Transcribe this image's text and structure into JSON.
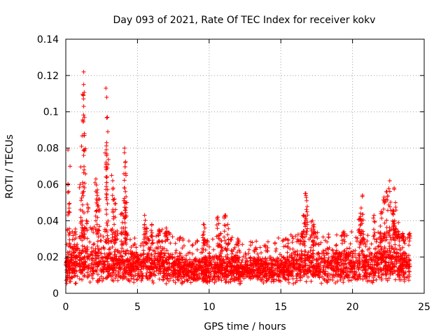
{
  "chart_data": {
    "type": "scatter",
    "title": "Day 093 of 2021, Rate Of TEC Index for receiver kokv",
    "xlabel": "GPS time / hours",
    "ylabel": "ROTI / TECUs",
    "xlim": [
      0,
      25
    ],
    "ylim": [
      0,
      0.14
    ],
    "xticks": [
      "0",
      "5",
      "10",
      "15",
      "20",
      "25"
    ],
    "yticks": [
      "0",
      "0.02",
      "0.04",
      "0.06",
      "0.08",
      "0.1",
      "0.12",
      "0.14"
    ],
    "grid": true,
    "marker": "+",
    "series": [
      {
        "name": "ROTI",
        "color": "#ff0000",
        "coverage": {
          "x_start": 0.0,
          "x_end": 24.0,
          "baseline_min": 0.005,
          "baseline_max": 0.028
        },
        "envelope": [
          [
            0.0,
            0.024
          ],
          [
            0.5,
            0.028
          ],
          [
            1.0,
            0.03
          ],
          [
            1.5,
            0.03
          ],
          [
            2.0,
            0.029
          ],
          [
            2.5,
            0.028
          ],
          [
            3.0,
            0.027
          ],
          [
            3.5,
            0.027
          ],
          [
            4.0,
            0.026
          ],
          [
            4.5,
            0.025
          ],
          [
            5.0,
            0.025
          ],
          [
            5.5,
            0.026
          ],
          [
            6.0,
            0.027
          ],
          [
            6.5,
            0.028
          ],
          [
            7.0,
            0.027
          ],
          [
            7.5,
            0.025
          ],
          [
            8.0,
            0.023
          ],
          [
            8.5,
            0.021
          ],
          [
            9.0,
            0.021
          ],
          [
            9.5,
            0.022
          ],
          [
            10.0,
            0.023
          ],
          [
            10.5,
            0.024
          ],
          [
            11.0,
            0.024
          ],
          [
            11.5,
            0.023
          ],
          [
            12.0,
            0.022
          ],
          [
            12.5,
            0.021
          ],
          [
            13.0,
            0.021
          ],
          [
            13.5,
            0.021
          ],
          [
            14.0,
            0.022
          ],
          [
            14.5,
            0.022
          ],
          [
            15.0,
            0.023
          ],
          [
            15.5,
            0.024
          ],
          [
            16.0,
            0.025
          ],
          [
            16.5,
            0.026
          ],
          [
            17.0,
            0.026
          ],
          [
            17.5,
            0.026
          ],
          [
            18.0,
            0.026
          ],
          [
            18.5,
            0.026
          ],
          [
            19.0,
            0.026
          ],
          [
            19.5,
            0.026
          ],
          [
            20.0,
            0.026
          ],
          [
            20.5,
            0.027
          ],
          [
            21.0,
            0.027
          ],
          [
            21.5,
            0.027
          ],
          [
            22.0,
            0.028
          ],
          [
            22.5,
            0.029
          ],
          [
            23.0,
            0.029
          ],
          [
            23.5,
            0.028
          ],
          [
            24.0,
            0.026
          ]
        ],
        "peaks": [
          {
            "x": 0.15,
            "y": 0.079
          },
          {
            "x": 0.3,
            "y": 0.07
          },
          {
            "x": 0.2,
            "y": 0.056
          },
          {
            "x": 1.1,
            "y": 0.081
          },
          {
            "x": 1.2,
            "y": 0.095
          },
          {
            "x": 1.25,
            "y": 0.103
          },
          {
            "x": 1.25,
            "y": 0.115
          },
          {
            "x": 1.25,
            "y": 0.122
          },
          {
            "x": 1.3,
            "y": 0.088
          },
          {
            "x": 1.0,
            "y": 0.06
          },
          {
            "x": 1.5,
            "y": 0.049
          },
          {
            "x": 2.1,
            "y": 0.063
          },
          {
            "x": 2.2,
            "y": 0.057
          },
          {
            "x": 2.3,
            "y": 0.052
          },
          {
            "x": 2.8,
            "y": 0.113
          },
          {
            "x": 2.85,
            "y": 0.108
          },
          {
            "x": 2.9,
            "y": 0.097
          },
          {
            "x": 2.85,
            "y": 0.083
          },
          {
            "x": 2.9,
            "y": 0.069
          },
          {
            "x": 3.2,
            "y": 0.065
          },
          {
            "x": 3.3,
            "y": 0.058
          },
          {
            "x": 3.4,
            "y": 0.052
          },
          {
            "x": 4.1,
            "y": 0.08
          },
          {
            "x": 4.15,
            "y": 0.072
          },
          {
            "x": 4.2,
            "y": 0.065
          },
          {
            "x": 4.1,
            "y": 0.058
          },
          {
            "x": 4.2,
            "y": 0.05
          },
          {
            "x": 3.9,
            "y": 0.044
          },
          {
            "x": 5.5,
            "y": 0.043
          },
          {
            "x": 5.6,
            "y": 0.036
          },
          {
            "x": 6.0,
            "y": 0.038
          },
          {
            "x": 6.5,
            "y": 0.035
          },
          {
            "x": 7.0,
            "y": 0.036
          },
          {
            "x": 9.6,
            "y": 0.038
          },
          {
            "x": 9.7,
            "y": 0.036
          },
          {
            "x": 10.6,
            "y": 0.042
          },
          {
            "x": 11.1,
            "y": 0.043
          },
          {
            "x": 11.3,
            "y": 0.038
          },
          {
            "x": 10.8,
            "y": 0.033
          },
          {
            "x": 12.0,
            "y": 0.03
          },
          {
            "x": 16.7,
            "y": 0.055
          },
          {
            "x": 16.8,
            "y": 0.051
          },
          {
            "x": 16.6,
            "y": 0.043
          },
          {
            "x": 17.2,
            "y": 0.04
          },
          {
            "x": 17.3,
            "y": 0.038
          },
          {
            "x": 20.7,
            "y": 0.054
          },
          {
            "x": 20.6,
            "y": 0.047
          },
          {
            "x": 20.5,
            "y": 0.041
          },
          {
            "x": 21.5,
            "y": 0.043
          },
          {
            "x": 22.0,
            "y": 0.045
          },
          {
            "x": 22.2,
            "y": 0.053
          },
          {
            "x": 22.4,
            "y": 0.056
          },
          {
            "x": 22.6,
            "y": 0.062
          },
          {
            "x": 22.9,
            "y": 0.058
          },
          {
            "x": 23.0,
            "y": 0.05
          },
          {
            "x": 22.8,
            "y": 0.044
          },
          {
            "x": 23.2,
            "y": 0.039
          },
          {
            "x": 23.5,
            "y": 0.033
          },
          {
            "x": 24.0,
            "y": 0.033
          }
        ]
      }
    ]
  }
}
